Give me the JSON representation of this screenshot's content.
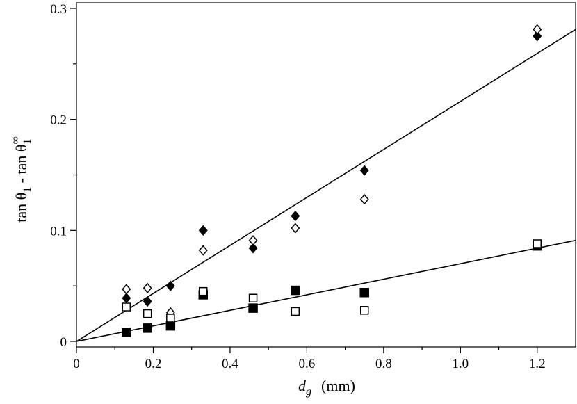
{
  "chart_data": {
    "type": "scatter",
    "title": "",
    "xlabel": {
      "main": "d",
      "sub": "g",
      "units": "(mm)"
    },
    "ylabel": {
      "prefix": "tan θ",
      "sub1": "1",
      "mid": " - tan θ",
      "sub2": "1",
      "sup": "∞"
    },
    "xlim": [
      0,
      1.3
    ],
    "ylim": [
      -0.005,
      0.305
    ],
    "xticks": [
      {
        "value": 0,
        "label": "0"
      },
      {
        "value": 0.2,
        "label": "0.2"
      },
      {
        "value": 0.4,
        "label": "0.4"
      },
      {
        "value": 0.6,
        "label": "0.6"
      },
      {
        "value": 0.8,
        "label": "0.8"
      },
      {
        "value": 1.0,
        "label": "1.0"
      },
      {
        "value": 1.2,
        "label": "1.2"
      }
    ],
    "xminor": [
      0.1,
      0.3,
      0.5,
      0.7,
      0.9,
      1.1
    ],
    "yticks": [
      {
        "value": 0,
        "label": "0"
      },
      {
        "value": 0.1,
        "label": "0.1"
      },
      {
        "value": 0.2,
        "label": "0.2"
      },
      {
        "value": 0.3,
        "label": "0.3"
      }
    ],
    "yminor": [
      0.05,
      0.15,
      0.25
    ],
    "series": [
      {
        "name": "filled-diamond",
        "marker": "diamond",
        "filled": true,
        "x": [
          0.13,
          0.185,
          0.245,
          0.33,
          0.46,
          0.57,
          0.75,
          1.2
        ],
        "y": [
          0.039,
          0.036,
          0.05,
          0.1,
          0.084,
          0.113,
          0.154,
          0.275
        ]
      },
      {
        "name": "open-diamond",
        "marker": "diamond",
        "filled": false,
        "x": [
          0.13,
          0.185,
          0.245,
          0.33,
          0.46,
          0.57,
          0.75,
          1.2
        ],
        "y": [
          0.047,
          0.048,
          0.026,
          0.082,
          0.091,
          0.102,
          0.128,
          0.281
        ]
      },
      {
        "name": "filled-square",
        "marker": "square",
        "filled": true,
        "x": [
          0.13,
          0.185,
          0.245,
          0.33,
          0.46,
          0.57,
          0.75,
          1.2
        ],
        "y": [
          0.008,
          0.012,
          0.014,
          0.042,
          0.03,
          0.046,
          0.044,
          0.086
        ]
      },
      {
        "name": "open-square",
        "marker": "square",
        "filled": false,
        "x": [
          0.13,
          0.185,
          0.245,
          0.33,
          0.46,
          0.57,
          0.75,
          1.2
        ],
        "y": [
          0.031,
          0.025,
          0.021,
          0.045,
          0.039,
          0.027,
          0.028,
          0.088
        ]
      }
    ],
    "fit_lines": [
      {
        "name": "diamond-fit",
        "x": [
          0,
          1.3
        ],
        "y": [
          0,
          0.281
        ]
      },
      {
        "name": "square-fit",
        "x": [
          0,
          1.3
        ],
        "y": [
          0,
          0.091
        ]
      }
    ],
    "grid": false,
    "legend": "none"
  }
}
